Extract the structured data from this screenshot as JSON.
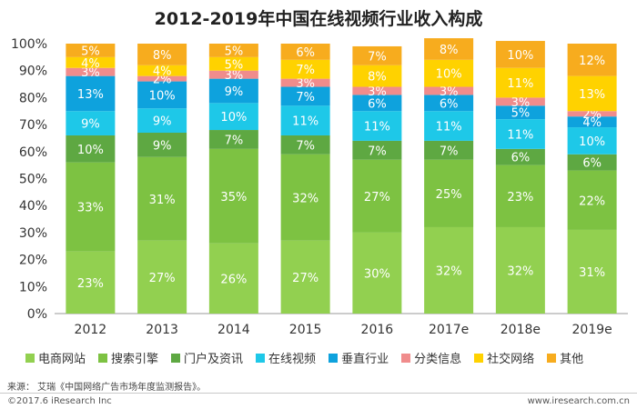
{
  "chart_data": {
    "type": "bar",
    "stacked": true,
    "title": "2012-2019年中国在线视频行业收入构成",
    "categories": [
      "2012",
      "2013",
      "2014",
      "2015",
      "2016",
      "2017e",
      "2018e",
      "2019e"
    ],
    "ylim": [
      0,
      100
    ],
    "y_ticks": [
      "0%",
      "10%",
      "20%",
      "30%",
      "40%",
      "50%",
      "60%",
      "70%",
      "80%",
      "90%",
      "100%"
    ],
    "legend_position": "bottom",
    "series": [
      {
        "name": "电商网站",
        "color": "#92d050",
        "values": [
          23,
          27,
          26,
          27,
          30,
          32,
          32,
          31
        ]
      },
      {
        "name": "搜索引擎",
        "color": "#7dc242",
        "values": [
          33,
          31,
          35,
          32,
          27,
          25,
          23,
          22
        ]
      },
      {
        "name": "门户及资讯",
        "color": "#5ea842",
        "values": [
          10,
          9,
          7,
          7,
          7,
          7,
          6,
          6
        ]
      },
      {
        "name": "在线视频",
        "color": "#1ec8e8",
        "values": [
          9,
          9,
          10,
          11,
          11,
          11,
          11,
          10
        ]
      },
      {
        "name": "垂直行业",
        "color": "#0ea2dd",
        "values": [
          13,
          10,
          9,
          7,
          6,
          6,
          5,
          4
        ]
      },
      {
        "name": "分类信息",
        "color": "#f08c8c",
        "values": [
          3,
          2,
          3,
          3,
          3,
          3,
          3,
          2
        ]
      },
      {
        "name": "社交网络",
        "color": "#ffd200",
        "values": [
          4,
          4,
          5,
          7,
          8,
          10,
          11,
          13
        ]
      },
      {
        "name": "其他",
        "color": "#f7ac1e",
        "values": [
          5,
          8,
          5,
          6,
          7,
          8,
          10,
          12
        ]
      }
    ]
  },
  "source_note": "来源： 艾瑞《中国网络广告市场年度监测报告》。",
  "footer": {
    "copyright": "©2017.6 iResearch Inc",
    "url": "www.iresearch.com.cn"
  }
}
